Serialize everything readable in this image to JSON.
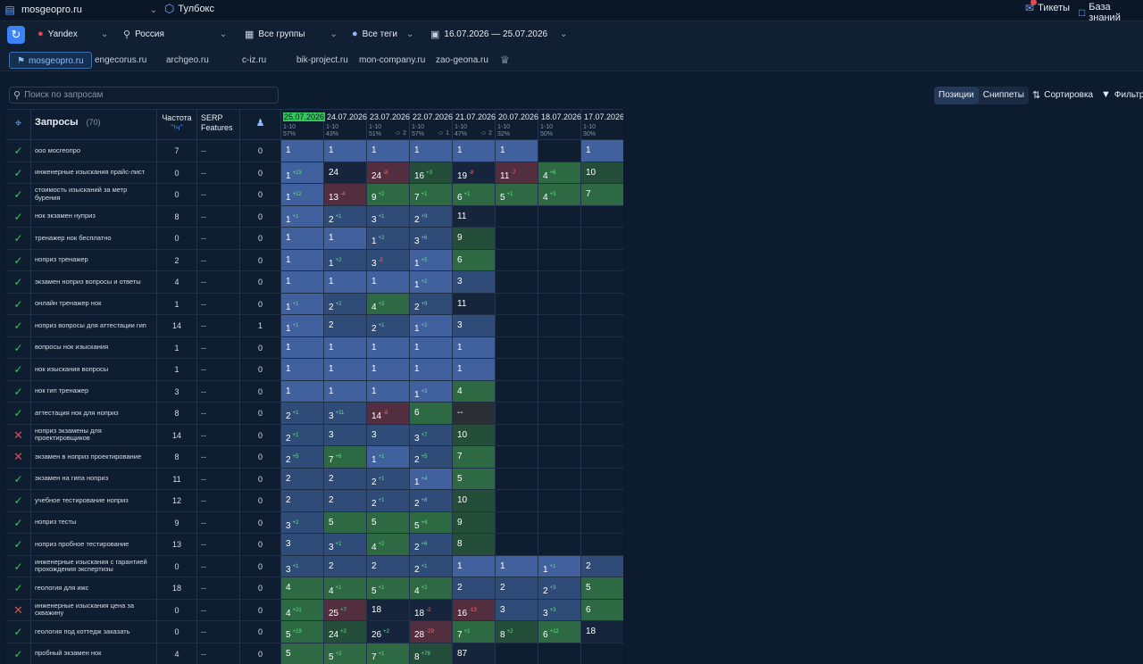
{
  "topbar": {
    "site": "mosgeopro.ru",
    "toolbox": "Тулбокс",
    "tickets": "Тикеты",
    "kb": "База знаний"
  },
  "filters": {
    "engine": "Yandex",
    "region": "Россия",
    "groups": "Все группы",
    "tags": "Все теги",
    "period": "16.07.2026 — 25.07.2026"
  },
  "site_tabs": [
    "mosgeopro.ru",
    "engecorus.ru",
    "archgeo.ru",
    "c-iz.ru",
    "bik-project.ru",
    "mon-company.ru",
    "zao-geona.ru"
  ],
  "search": {
    "placeholder": "Поиск по запросам"
  },
  "view_toggle": {
    "positions": "Позиции",
    "snippets": "Сниппеты"
  },
  "sort_label": "Сортировка",
  "filter_label": "Фильтр",
  "table": {
    "queries_label": "Запросы",
    "queries_count": "(70)",
    "freq_label": "Частота",
    "freq_sub": "\"!ч\"",
    "serp_label": "SERP Features",
    "dates": [
      {
        "date": "25.07.2026",
        "range": "1-10",
        "pct": "57%",
        "current": true
      },
      {
        "date": "24.07.2026",
        "range": "1-10",
        "pct": "43%"
      },
      {
        "date": "23.07.2026",
        "range": "1-10",
        "pct": "51%",
        "ext": "2"
      },
      {
        "date": "22.07.2026",
        "range": "1-10",
        "pct": "57%",
        "ext": "1"
      },
      {
        "date": "21.07.2026",
        "range": "1-10",
        "pct": "47%",
        "ext": "2"
      },
      {
        "date": "20.07.2026",
        "range": "1-10",
        "pct": "32%"
      },
      {
        "date": "18.07.2026",
        "range": "1-10",
        "pct": "50%"
      },
      {
        "date": "17.07.2026",
        "range": "1-10",
        "pct": "30%"
      }
    ],
    "rows": [
      {
        "st": "ok",
        "q": "ооо мосгеопро",
        "f": "7",
        "s": "--",
        "u": "0",
        "d": [
          [
            "1",
            "",
            1
          ],
          [
            "1",
            "",
            1
          ],
          [
            "1",
            "",
            1
          ],
          [
            "1",
            "",
            1
          ],
          [
            "1",
            "",
            1
          ],
          [
            "1",
            "",
            1
          ],
          [
            "",
            "",
            0
          ],
          [
            "1",
            "",
            1
          ]
        ]
      },
      {
        "st": "ok",
        "q": "инженерные изыскания прайс-лист",
        "f": "0",
        "s": "--",
        "u": "0",
        "d": [
          [
            "1",
            "+23",
            1
          ],
          [
            "24",
            "",
            5
          ],
          [
            "24",
            "-8",
            6
          ],
          [
            "16",
            "+3",
            4
          ],
          [
            "19",
            "-8",
            5
          ],
          [
            "11",
            "-7",
            6
          ],
          [
            "4",
            "+6",
            3
          ],
          [
            "10",
            "",
            4
          ]
        ]
      },
      {
        "st": "ok",
        "q": "стоимость изысканий за метр бурения",
        "f": "0",
        "s": "--",
        "u": "0",
        "d": [
          [
            "1",
            "+12",
            1
          ],
          [
            "13",
            "-4",
            6
          ],
          [
            "9",
            "+2",
            3
          ],
          [
            "7",
            "+1",
            3
          ],
          [
            "6",
            "+1",
            3
          ],
          [
            "5",
            "+1",
            3
          ],
          [
            "4",
            "+3",
            3
          ],
          [
            "7",
            "",
            3
          ]
        ]
      },
      {
        "st": "ok",
        "q": "нок экзамен нуприз",
        "f": "8",
        "s": "--",
        "u": "0",
        "d": [
          [
            "1",
            "+1",
            1
          ],
          [
            "2",
            "+1",
            2
          ],
          [
            "3",
            "+1",
            2
          ],
          [
            "2",
            "+9",
            2
          ],
          [
            "11",
            "",
            5
          ],
          [
            "",
            "",
            0
          ],
          [
            "",
            "",
            0
          ],
          [
            "",
            "",
            0
          ]
        ]
      },
      {
        "st": "ok",
        "q": "тренажер нок бесплатно",
        "f": "0",
        "s": "--",
        "u": "0",
        "d": [
          [
            "1",
            "",
            1
          ],
          [
            "1",
            "",
            1
          ],
          [
            "1",
            "+2",
            2
          ],
          [
            "3",
            "+6",
            2
          ],
          [
            "9",
            "",
            4
          ],
          [
            "",
            "",
            0
          ],
          [
            "",
            "",
            0
          ],
          [
            "",
            "",
            0
          ]
        ]
      },
      {
        "st": "ok",
        "q": "ноприз тренажер",
        "f": "2",
        "s": "--",
        "u": "0",
        "d": [
          [
            "1",
            "",
            1
          ],
          [
            "1",
            "+2",
            2
          ],
          [
            "3",
            "-2",
            2
          ],
          [
            "1",
            "+5",
            1
          ],
          [
            "6",
            "",
            3
          ],
          [
            "",
            "",
            0
          ],
          [
            "",
            "",
            0
          ],
          [
            "",
            "",
            0
          ]
        ]
      },
      {
        "st": "ok",
        "q": "экзамен ноприз вопросы и ответы",
        "f": "4",
        "s": "--",
        "u": "0",
        "d": [
          [
            "1",
            "",
            1
          ],
          [
            "1",
            "",
            1
          ],
          [
            "1",
            "",
            1
          ],
          [
            "1",
            "+2",
            1
          ],
          [
            "3",
            "",
            2
          ],
          [
            "",
            "",
            0
          ],
          [
            "",
            "",
            0
          ],
          [
            "",
            "",
            0
          ]
        ]
      },
      {
        "st": "ok",
        "q": "онлайн тренажер нок",
        "f": "1",
        "s": "--",
        "u": "0",
        "d": [
          [
            "1",
            "+1",
            1
          ],
          [
            "2",
            "+2",
            2
          ],
          [
            "4",
            "+2",
            3
          ],
          [
            "2",
            "+9",
            2
          ],
          [
            "11",
            "",
            5
          ],
          [
            "",
            "",
            0
          ],
          [
            "",
            "",
            0
          ],
          [
            "",
            "",
            0
          ]
        ]
      },
      {
        "st": "ok",
        "q": "ноприз вопросы для аттестации гип",
        "f": "14",
        "s": "--",
        "u": "1",
        "d": [
          [
            "1",
            "+1",
            1
          ],
          [
            "2",
            "",
            2
          ],
          [
            "2",
            "+1",
            2
          ],
          [
            "1",
            "+2",
            1
          ],
          [
            "3",
            "",
            2
          ],
          [
            "",
            "",
            0
          ],
          [
            "",
            "",
            0
          ],
          [
            "",
            "",
            0
          ]
        ]
      },
      {
        "st": "ok",
        "q": "вопросы нок изыскания",
        "f": "1",
        "s": "--",
        "u": "0",
        "d": [
          [
            "1",
            "",
            1
          ],
          [
            "1",
            "",
            1
          ],
          [
            "1",
            "",
            1
          ],
          [
            "1",
            "",
            1
          ],
          [
            "1",
            "",
            1
          ],
          [
            "",
            "",
            0
          ],
          [
            "",
            "",
            0
          ],
          [
            "",
            "",
            0
          ]
        ]
      },
      {
        "st": "ok",
        "q": "нок изыскания вопросы",
        "f": "1",
        "s": "--",
        "u": "0",
        "d": [
          [
            "1",
            "",
            1
          ],
          [
            "1",
            "",
            1
          ],
          [
            "1",
            "",
            1
          ],
          [
            "1",
            "",
            1
          ],
          [
            "1",
            "",
            1
          ],
          [
            "",
            "",
            0
          ],
          [
            "",
            "",
            0
          ],
          [
            "",
            "",
            0
          ]
        ]
      },
      {
        "st": "ok",
        "q": "нок гип тренажер",
        "f": "3",
        "s": "--",
        "u": "0",
        "d": [
          [
            "1",
            "",
            1
          ],
          [
            "1",
            "",
            1
          ],
          [
            "1",
            "",
            1
          ],
          [
            "1",
            "+3",
            1
          ],
          [
            "4",
            "",
            3
          ],
          [
            "",
            "",
            0
          ],
          [
            "",
            "",
            0
          ],
          [
            "",
            "",
            0
          ]
        ]
      },
      {
        "st": "ok",
        "q": "аттестация нок для ноприз",
        "f": "8",
        "s": "--",
        "u": "0",
        "d": [
          [
            "2",
            "+1",
            2
          ],
          [
            "3",
            "+11",
            2
          ],
          [
            "14",
            "-8",
            6
          ],
          [
            "6",
            "",
            3
          ],
          [
            "--",
            "",
            7
          ],
          [
            "",
            "",
            0
          ],
          [
            "",
            "",
            0
          ],
          [
            "",
            "",
            0
          ]
        ]
      },
      {
        "st": "bad",
        "q": "ноприз экзамены для проектировщиков",
        "f": "14",
        "s": "--",
        "u": "0",
        "d": [
          [
            "2",
            "+1",
            2
          ],
          [
            "3",
            "",
            2
          ],
          [
            "3",
            "",
            2
          ],
          [
            "3",
            "+7",
            2
          ],
          [
            "10",
            "",
            4
          ],
          [
            "",
            "",
            0
          ],
          [
            "",
            "",
            0
          ],
          [
            "",
            "",
            0
          ]
        ]
      },
      {
        "st": "bad",
        "q": "экзамен в ноприз проектирование",
        "f": "8",
        "s": "--",
        "u": "0",
        "d": [
          [
            "2",
            "+5",
            2
          ],
          [
            "7",
            "+6",
            3
          ],
          [
            "1",
            "+1",
            1
          ],
          [
            "2",
            "+5",
            2
          ],
          [
            "7",
            "",
            3
          ],
          [
            "",
            "",
            0
          ],
          [
            "",
            "",
            0
          ],
          [
            "",
            "",
            0
          ]
        ]
      },
      {
        "st": "ok",
        "q": "экзамен на гипа ноприз",
        "f": "11",
        "s": "--",
        "u": "0",
        "d": [
          [
            "2",
            "",
            2
          ],
          [
            "2",
            "",
            2
          ],
          [
            "2",
            "+1",
            2
          ],
          [
            "1",
            "+4",
            1
          ],
          [
            "5",
            "",
            3
          ],
          [
            "",
            "",
            0
          ],
          [
            "",
            "",
            0
          ],
          [
            "",
            "",
            0
          ]
        ]
      },
      {
        "st": "ok",
        "q": "учебное тестирование ноприз",
        "f": "12",
        "s": "--",
        "u": "0",
        "d": [
          [
            "2",
            "",
            2
          ],
          [
            "2",
            "",
            2
          ],
          [
            "2",
            "+1",
            2
          ],
          [
            "2",
            "+8",
            2
          ],
          [
            "10",
            "",
            4
          ],
          [
            "",
            "",
            0
          ],
          [
            "",
            "",
            0
          ],
          [
            "",
            "",
            0
          ]
        ]
      },
      {
        "st": "ok",
        "q": "ноприз тесты",
        "f": "9",
        "s": "--",
        "u": "0",
        "d": [
          [
            "3",
            "+2",
            2
          ],
          [
            "5",
            "",
            3
          ],
          [
            "5",
            "",
            3
          ],
          [
            "5",
            "+4",
            3
          ],
          [
            "9",
            "",
            4
          ],
          [
            "",
            "",
            0
          ],
          [
            "",
            "",
            0
          ],
          [
            "",
            "",
            0
          ]
        ]
      },
      {
        "st": "ok",
        "q": "ноприз пробное тестирование",
        "f": "13",
        "s": "--",
        "u": "0",
        "d": [
          [
            "3",
            "",
            2
          ],
          [
            "3",
            "+1",
            2
          ],
          [
            "4",
            "+2",
            3
          ],
          [
            "2",
            "+6",
            2
          ],
          [
            "8",
            "",
            4
          ],
          [
            "",
            "",
            0
          ],
          [
            "",
            "",
            0
          ],
          [
            "",
            "",
            0
          ]
        ]
      },
      {
        "st": "ok",
        "q": "инженерные изыскания с гарантией прохождения экспертизы",
        "f": "0",
        "s": "--",
        "u": "0",
        "d": [
          [
            "3",
            "+1",
            2
          ],
          [
            "2",
            "",
            2
          ],
          [
            "2",
            "",
            2
          ],
          [
            "2",
            "+1",
            2
          ],
          [
            "1",
            "",
            1
          ],
          [
            "1",
            "",
            1
          ],
          [
            "1",
            "+1",
            1
          ],
          [
            "2",
            "",
            2
          ]
        ]
      },
      {
        "st": "ok",
        "q": "геология для ижс",
        "f": "18",
        "s": "--",
        "u": "0",
        "d": [
          [
            "4",
            "",
            3
          ],
          [
            "4",
            "+1",
            3
          ],
          [
            "5",
            "+1",
            3
          ],
          [
            "4",
            "+2",
            3
          ],
          [
            "2",
            "",
            2
          ],
          [
            "2",
            "",
            2
          ],
          [
            "2",
            "+3",
            2
          ],
          [
            "5",
            "",
            3
          ]
        ]
      },
      {
        "st": "bad",
        "q": "инженерные изыскания цена за скважину",
        "f": "0",
        "s": "--",
        "u": "0",
        "d": [
          [
            "4",
            "+21",
            3
          ],
          [
            "25",
            "+7",
            6
          ],
          [
            "18",
            "",
            5
          ],
          [
            "18",
            "-2",
            5
          ],
          [
            "16",
            "-13",
            6
          ],
          [
            "3",
            "",
            2
          ],
          [
            "3",
            "+3",
            2
          ],
          [
            "6",
            "",
            3
          ]
        ]
      },
      {
        "st": "ok",
        "q": "геология под коттедж заказать",
        "f": "0",
        "s": "--",
        "u": "0",
        "d": [
          [
            "5",
            "+19",
            3
          ],
          [
            "24",
            "+2",
            4
          ],
          [
            "26",
            "+2",
            5
          ],
          [
            "28",
            "-29",
            6
          ],
          [
            "7",
            "+1",
            3
          ],
          [
            "8",
            "+2",
            4
          ],
          [
            "6",
            "+12",
            3
          ],
          [
            "18",
            "",
            5
          ]
        ]
      },
      {
        "st": "ok",
        "q": "пробный экзамен нок",
        "f": "4",
        "s": "--",
        "u": "0",
        "d": [
          [
            "5",
            "",
            3
          ],
          [
            "5",
            "+2",
            3
          ],
          [
            "7",
            "+1",
            3
          ],
          [
            "8",
            "+79",
            4
          ],
          [
            "87",
            "",
            5
          ],
          [
            "",
            "",
            0
          ],
          [
            "",
            "",
            0
          ],
          [
            "",
            "",
            0
          ]
        ]
      }
    ]
  }
}
